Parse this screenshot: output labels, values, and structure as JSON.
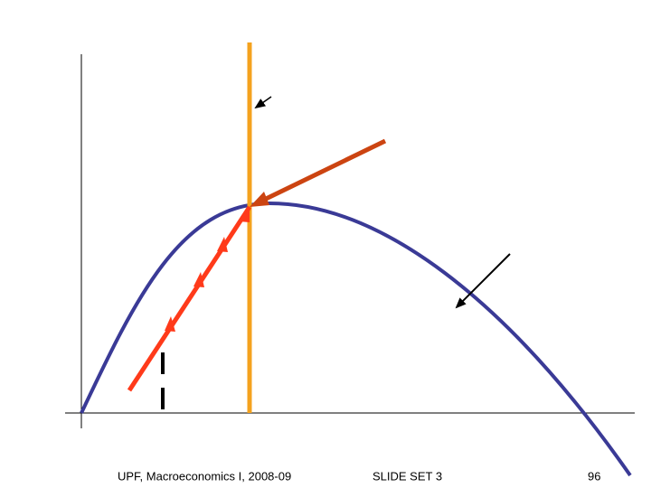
{
  "slide": {
    "footer_left": "UPF, Macroeconomics I, 2008-09",
    "footer_center": "SLIDE SET 3",
    "page_number": "96"
  },
  "colors": {
    "axis": "#000000",
    "hump_curve": "#3a3a96",
    "vertical_line": "#f4a21e",
    "path_line": "#ff3a1a",
    "saddle_line": "#cc4411",
    "pointer_arrow": "#000000",
    "dashed_marker": "#000000"
  }
}
